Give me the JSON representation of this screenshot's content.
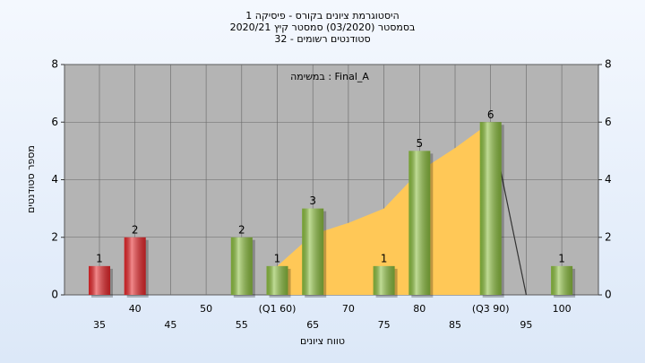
{
  "chart_data": {
    "type": "bar",
    "title": "היסטוגרמת ציונים בקורס - פיסיקה 1",
    "subtitle": "בסמסטר  (03/2020)  סמסטר קיץ  2020/21",
    "subtitle2": "סטודנטים רשומים - 32",
    "annotation": "במשימה : Final_A",
    "x_label": "טווח ציונים",
    "y_label": "מספר סטודנטים",
    "categories": [
      "35",
      "40",
      "45",
      "50",
      "55",
      "(Q1 60)",
      "65",
      "70",
      "75",
      "80",
      "85",
      "(Q3 90)",
      "95",
      "100"
    ],
    "values": [
      1,
      2,
      0,
      0,
      2,
      1,
      3,
      0,
      1,
      5,
      0,
      6,
      0,
      1
    ],
    "bar_colors": [
      "#e8282c",
      "#e8282c",
      "#8cbf3f",
      "#8cbf3f",
      "#8cbf3f",
      "#8cbf3f",
      "#8cbf3f",
      "#8cbf3f",
      "#8cbf3f",
      "#8cbf3f",
      "#8cbf3f",
      "#8cbf3f",
      "#8cbf3f",
      "#8cbf3f"
    ],
    "area": {
      "color": "#ffc857",
      "values": [
        null,
        null,
        null,
        null,
        null,
        1,
        2.1,
        2.5,
        3,
        4.3,
        5.1,
        6,
        null,
        null
      ]
    },
    "line": {
      "color": "#333333",
      "values": [
        null,
        null,
        null,
        null,
        null,
        null,
        null,
        null,
        null,
        null,
        null,
        6,
        0,
        null
      ]
    },
    "ylim": [
      0,
      8
    ],
    "yticks": [
      0,
      2,
      4,
      6,
      8
    ],
    "y2lim": [
      0,
      8
    ],
    "y2ticks": [
      0,
      2,
      4,
      6,
      8
    ],
    "grid": true
  }
}
